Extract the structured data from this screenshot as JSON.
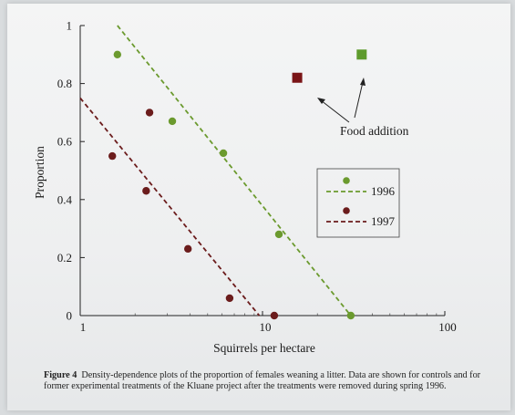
{
  "chart_data": {
    "type": "scatter",
    "xscale": "log",
    "xlim": [
      1,
      100
    ],
    "ylim": [
      0,
      1
    ],
    "xlabel": "Squirrels per hectare",
    "ylabel": "Proportion",
    "x_ticks": [
      {
        "value": 1,
        "label": "1"
      },
      {
        "value": 10,
        "label": "10"
      },
      {
        "value": 100,
        "label": "100"
      }
    ],
    "y_ticks": [
      {
        "value": 0,
        "label": "0"
      },
      {
        "value": 0.2,
        "label": "0.2"
      },
      {
        "value": 0.4,
        "label": "0.4"
      },
      {
        "value": 0.6,
        "label": "0.6"
      },
      {
        "value": 0.8,
        "label": "0.8"
      },
      {
        "value": 1,
        "label": "1"
      }
    ],
    "grid": false,
    "legend_position": "right",
    "series": [
      {
        "name": "1996",
        "color": "#6b9a2e",
        "points": [
          [
            1.6,
            0.9
          ],
          [
            3.2,
            0.67
          ],
          [
            6.1,
            0.56
          ],
          [
            12.3,
            0.28
          ],
          [
            30.5,
            0
          ]
        ],
        "fit_line": [
          [
            1.6,
            1
          ],
          [
            30.5,
            0
          ]
        ]
      },
      {
        "name": "1997",
        "color": "#6b1c1c",
        "points": [
          [
            1.5,
            0.55
          ],
          [
            2.4,
            0.7
          ],
          [
            2.3,
            0.43
          ],
          [
            3.9,
            0.23
          ],
          [
            6.6,
            0.06
          ],
          [
            11.6,
            0
          ]
        ],
        "fit_line": [
          [
            1,
            0.75
          ],
          [
            9.6,
            0
          ]
        ]
      }
    ],
    "food_addition": {
      "label": "Food addition",
      "points": [
        {
          "x": 15.5,
          "y": 0.82,
          "color": "#7a1416"
        },
        {
          "x": 35,
          "y": 0.9,
          "color": "#5e9b2c"
        }
      ]
    }
  },
  "caption": {
    "label": "Figure 4",
    "text": "Density-dependence plots of the proportion of females weaning a litter. Data are shown for controls and for former experimental treatments of the Kluane project after the treatments were removed during spring 1996."
  }
}
